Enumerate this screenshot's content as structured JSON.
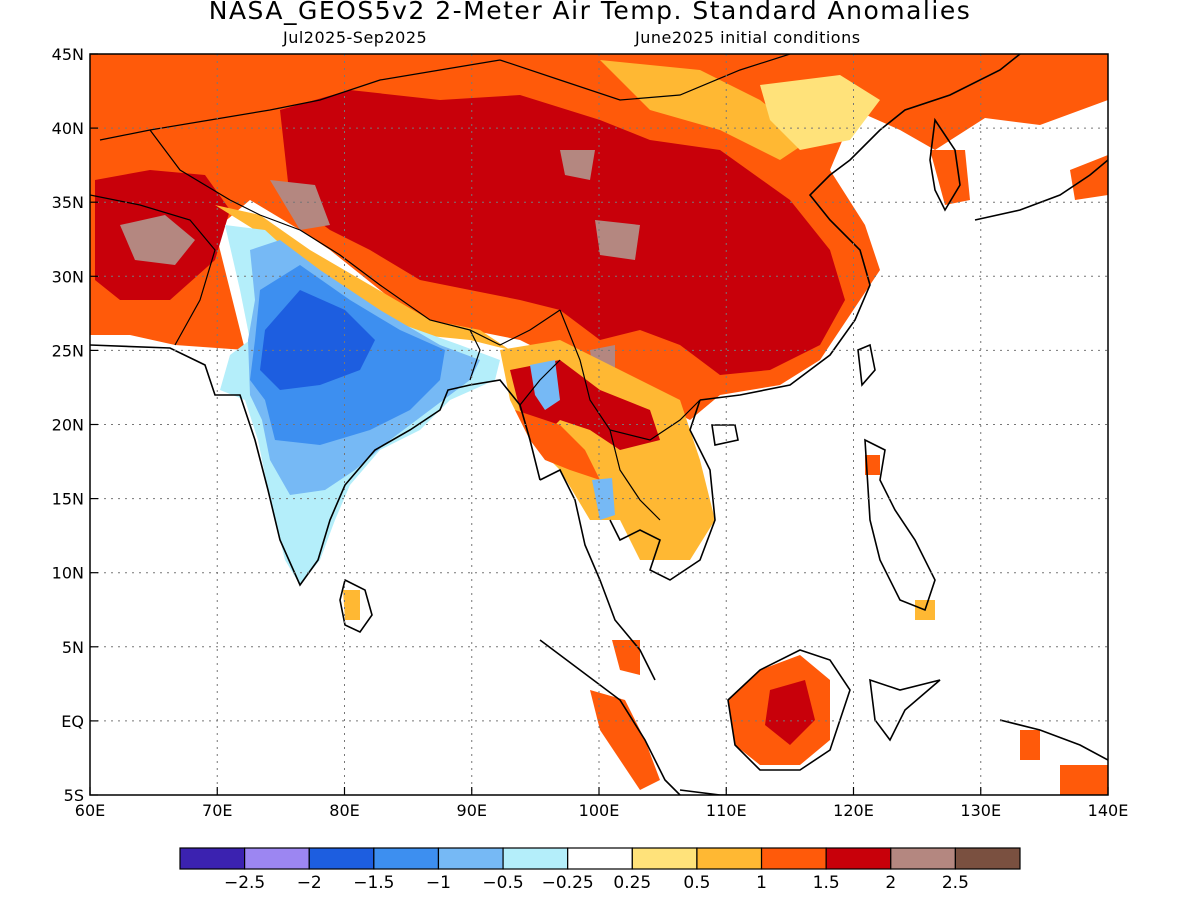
{
  "header": {
    "title": "NASA_GEOS5v2 2-Meter Air Temp. Standard Anomalies",
    "period": "Jul2025-Sep2025",
    "init": "June2025 initial conditions"
  },
  "map": {
    "lon_range": [
      60,
      140
    ],
    "lat_range": [
      -5,
      45
    ],
    "lon_ticks": [
      "60E",
      "70E",
      "80E",
      "90E",
      "100E",
      "110E",
      "120E",
      "130E",
      "140E"
    ],
    "lat_ticks": [
      "45N",
      "40N",
      "35N",
      "30N",
      "25N",
      "20N",
      "15N",
      "10N",
      "5N",
      "EQ",
      "5S"
    ],
    "gridlines": "dotted"
  },
  "colorbar": {
    "colors": [
      "#3b22b0",
      "#9c86f2",
      "#1d5ee0",
      "#3d8ff0",
      "#76b9f5",
      "#b4eefa",
      "#ffffff",
      "#ffe27a",
      "#ffb833",
      "#ff5a0a",
      "#c8000a",
      "#b48780",
      "#7a5040"
    ],
    "labels": [
      "-2.5",
      "-2",
      "-1.5",
      "-1",
      "-0.5",
      "-0.25",
      "0.25",
      "0.5",
      "1",
      "1.5",
      "2",
      "2.5"
    ]
  },
  "colors": {
    "strong_warm": "#c8000a",
    "warm": "#ff5a0a",
    "moderate_warm": "#ffb833",
    "slight_warm": "#ffe27a",
    "extreme_warm": "#b48780",
    "cold": "#1d5ee0",
    "cool": "#3d8ff0",
    "mild_cool": "#76b9f5",
    "slight_cool": "#b4eefa"
  }
}
